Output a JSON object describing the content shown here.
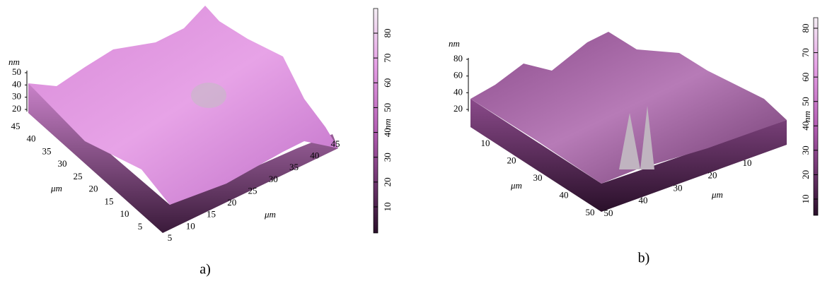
{
  "panels": [
    {
      "caption": "a)",
      "z_axis": {
        "unit": "nm",
        "ticks": [
          20,
          30,
          40,
          50
        ]
      },
      "left_axis": {
        "unit": "μm",
        "ticks": [
          45,
          40,
          35,
          30,
          25,
          20,
          15,
          10,
          5
        ]
      },
      "right_axis": {
        "unit": "μm",
        "ticks": [
          5,
          10,
          15,
          20,
          25,
          30,
          35,
          40,
          45
        ]
      },
      "colorbar": {
        "unit": "nm",
        "ticks": [
          10,
          20,
          30,
          40,
          50,
          60,
          70,
          80
        ]
      }
    },
    {
      "caption": "b)",
      "z_axis": {
        "unit": "nm",
        "ticks": [
          20,
          40,
          60,
          80
        ]
      },
      "left_axis": {
        "unit": "μm",
        "ticks": [
          10,
          20,
          30,
          40,
          50
        ]
      },
      "right_axis": {
        "unit": "μm",
        "ticks": [
          50,
          40,
          30,
          20,
          10
        ]
      },
      "colorbar": {
        "unit": "nm",
        "ticks": [
          10,
          20,
          30,
          40,
          50,
          60,
          70,
          80
        ]
      }
    }
  ]
}
